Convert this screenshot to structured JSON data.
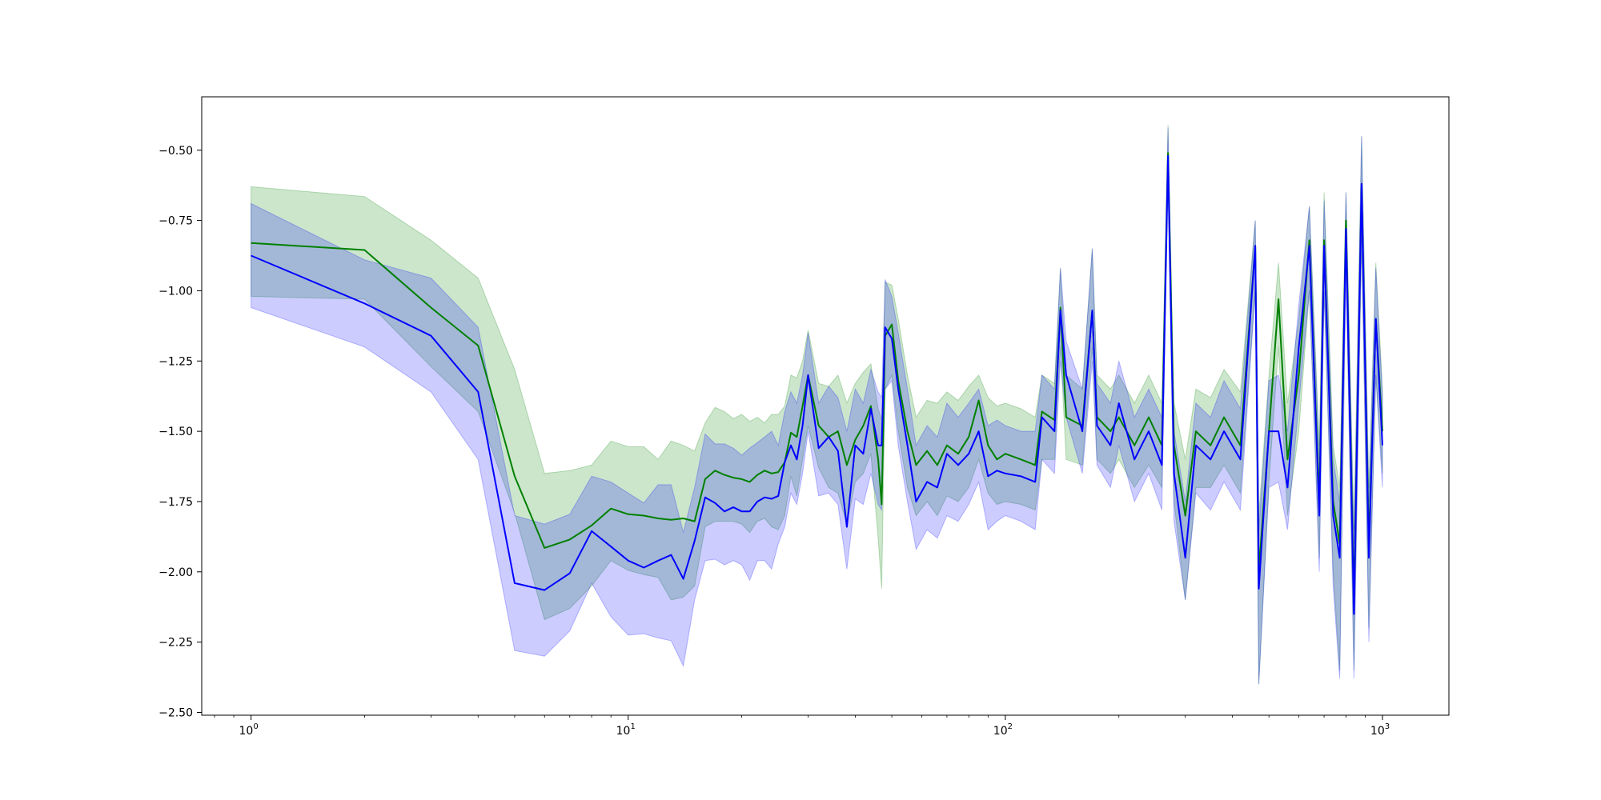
{
  "chart_data": {
    "type": "line",
    "title": "",
    "xlabel": "",
    "ylabel": "",
    "x_scale": "log",
    "xlim": [
      0.74,
      1500
    ],
    "ylim": [
      -2.51,
      -0.31
    ],
    "grid": false,
    "legend": "none",
    "x_ticks": [
      {
        "value": 1,
        "base": "10",
        "exp": "0"
      },
      {
        "value": 10,
        "base": "10",
        "exp": "1"
      },
      {
        "value": 100,
        "base": "10",
        "exp": "2"
      },
      {
        "value": 1000,
        "base": "10",
        "exp": "3"
      }
    ],
    "y_ticks": [
      {
        "value": -0.5,
        "label": "−0.50"
      },
      {
        "value": -0.75,
        "label": "−0.75"
      },
      {
        "value": -1.0,
        "label": "−1.00"
      },
      {
        "value": -1.25,
        "label": "−1.25"
      },
      {
        "value": -1.5,
        "label": "−1.50"
      },
      {
        "value": -1.75,
        "label": "−1.75"
      },
      {
        "value": -2.0,
        "label": "−2.00"
      },
      {
        "value": -2.25,
        "label": "−2.25"
      },
      {
        "value": -2.5,
        "label": "−2.50"
      }
    ],
    "series": [
      {
        "color": "#008000",
        "band_color": "#008000",
        "band_opacity": 0.2,
        "points": [
          [
            1,
            -0.83,
            -1.02,
            -0.63
          ],
          [
            2,
            -0.855,
            -1.03,
            -0.665
          ],
          [
            3,
            -1.06,
            -1.27,
            -0.82
          ],
          [
            4,
            -1.195,
            -1.43,
            -0.955
          ],
          [
            5,
            -1.66,
            -1.79,
            -1.28
          ],
          [
            6,
            -1.915,
            -2.17,
            -1.65
          ],
          [
            7,
            -1.885,
            -2.13,
            -1.64
          ],
          [
            8,
            -1.835,
            -2.05,
            -1.62
          ],
          [
            9,
            -1.775,
            -1.96,
            -1.535
          ],
          [
            10,
            -1.795,
            -1.995,
            -1.555
          ],
          [
            11,
            -1.8,
            -2.01,
            -1.555
          ],
          [
            12,
            -1.81,
            -2.02,
            -1.6
          ],
          [
            13,
            -1.815,
            -2.1,
            -1.535
          ],
          [
            14,
            -1.81,
            -2.09,
            -1.55
          ],
          [
            15,
            -1.82,
            -2.05,
            -1.57
          ],
          [
            16,
            -1.67,
            -1.84,
            -1.47
          ],
          [
            17,
            -1.64,
            -1.82,
            -1.415
          ],
          [
            18,
            -1.655,
            -1.82,
            -1.43
          ],
          [
            19,
            -1.665,
            -1.82,
            -1.455
          ],
          [
            20,
            -1.67,
            -1.83,
            -1.44
          ],
          [
            21,
            -1.68,
            -1.86,
            -1.465
          ],
          [
            22,
            -1.655,
            -1.82,
            -1.45
          ],
          [
            23,
            -1.64,
            -1.81,
            -1.47
          ],
          [
            24,
            -1.65,
            -1.84,
            -1.44
          ],
          [
            25,
            -1.645,
            -1.85,
            -1.44
          ],
          [
            26,
            -1.61,
            -1.8,
            -1.41
          ],
          [
            27,
            -1.505,
            -1.66,
            -1.3
          ],
          [
            28,
            -1.52,
            -1.73,
            -1.31
          ],
          [
            29,
            -1.41,
            -1.6,
            -1.25
          ],
          [
            30,
            -1.3,
            -1.48,
            -1.14
          ],
          [
            32,
            -1.48,
            -1.63,
            -1.33
          ],
          [
            34,
            -1.52,
            -1.7,
            -1.34
          ],
          [
            36,
            -1.5,
            -1.72,
            -1.3
          ],
          [
            38,
            -1.62,
            -1.83,
            -1.4
          ],
          [
            40,
            -1.53,
            -1.68,
            -1.33
          ],
          [
            42,
            -1.48,
            -1.65,
            -1.29
          ],
          [
            44,
            -1.41,
            -1.58,
            -1.26
          ],
          [
            46,
            -1.6,
            -1.88,
            -1.42
          ],
          [
            47,
            -1.76,
            -2.06,
            -1.46
          ],
          [
            48,
            -1.16,
            -1.35,
            -0.97
          ],
          [
            50,
            -1.12,
            -1.3,
            -0.98
          ],
          [
            52,
            -1.32,
            -1.5,
            -1.1
          ],
          [
            55,
            -1.5,
            -1.7,
            -1.3
          ],
          [
            58,
            -1.62,
            -1.8,
            -1.45
          ],
          [
            62,
            -1.57,
            -1.75,
            -1.39
          ],
          [
            66,
            -1.62,
            -1.8,
            -1.4
          ],
          [
            70,
            -1.55,
            -1.73,
            -1.36
          ],
          [
            75,
            -1.58,
            -1.75,
            -1.39
          ],
          [
            80,
            -1.52,
            -1.7,
            -1.34
          ],
          [
            85,
            -1.39,
            -1.6,
            -1.3
          ],
          [
            90,
            -1.55,
            -1.72,
            -1.38
          ],
          [
            95,
            -1.6,
            -1.76,
            -1.41
          ],
          [
            100,
            -1.58,
            -1.75,
            -1.4
          ],
          [
            110,
            -1.6,
            -1.76,
            -1.42
          ],
          [
            120,
            -1.62,
            -1.78,
            -1.45
          ],
          [
            125,
            -1.43,
            -1.6,
            -1.3
          ],
          [
            135,
            -1.46,
            -1.6,
            -1.33
          ],
          [
            140,
            -1.06,
            -1.2,
            -0.92
          ],
          [
            145,
            -1.45,
            -1.6,
            -1.3
          ],
          [
            160,
            -1.48,
            -1.62,
            -1.35
          ],
          [
            170,
            -1.07,
            -1.2,
            -0.85
          ],
          [
            175,
            -1.45,
            -1.6,
            -1.3
          ],
          [
            190,
            -1.5,
            -1.65,
            -1.35
          ],
          [
            200,
            -1.45,
            -1.6,
            -1.3
          ],
          [
            220,
            -1.55,
            -1.7,
            -1.4
          ],
          [
            240,
            -1.45,
            -1.62,
            -1.3
          ],
          [
            260,
            -1.55,
            -1.7,
            -1.4
          ],
          [
            270,
            -0.51,
            -0.6,
            -0.41
          ],
          [
            280,
            -1.55,
            -1.75,
            -1.4
          ],
          [
            300,
            -1.8,
            -2.1,
            -1.6
          ],
          [
            320,
            -1.5,
            -1.7,
            -1.35
          ],
          [
            350,
            -1.55,
            -1.7,
            -1.38
          ],
          [
            380,
            -1.45,
            -1.62,
            -1.28
          ],
          [
            420,
            -1.55,
            -1.72,
            -1.36
          ],
          [
            460,
            -0.84,
            -1.0,
            -0.75
          ],
          [
            470,
            -2.0,
            -2.4,
            -1.8
          ],
          [
            500,
            -1.5,
            -1.68,
            -1.3
          ],
          [
            530,
            -1.03,
            -1.2,
            -0.9
          ],
          [
            560,
            -1.6,
            -1.8,
            -1.4
          ],
          [
            600,
            -1.3,
            -1.5,
            -1.1
          ],
          [
            640,
            -0.82,
            -1.0,
            -0.7
          ],
          [
            680,
            -1.75,
            -1.95,
            -1.55
          ],
          [
            700,
            -0.82,
            -1.0,
            -0.65
          ],
          [
            740,
            -1.75,
            -2.0,
            -1.55
          ],
          [
            770,
            -1.9,
            -2.35,
            -1.7
          ],
          [
            800,
            -0.75,
            -0.9,
            -0.65
          ],
          [
            840,
            -2.1,
            -2.35,
            -1.85
          ],
          [
            880,
            -0.63,
            -0.8,
            -0.45
          ],
          [
            920,
            -1.9,
            -2.2,
            -1.7
          ],
          [
            960,
            -1.1,
            -1.3,
            -0.9
          ],
          [
            1000,
            -1.5,
            -1.65,
            -1.35
          ]
        ]
      },
      {
        "color": "#0000ff",
        "band_color": "#0000ff",
        "band_opacity": 0.2,
        "points": [
          [
            1,
            -0.875,
            -1.06,
            -0.69
          ],
          [
            2,
            -1.045,
            -1.2,
            -0.89
          ],
          [
            3,
            -1.16,
            -1.36,
            -0.955
          ],
          [
            4,
            -1.36,
            -1.6,
            -1.13
          ],
          [
            5,
            -2.04,
            -2.28,
            -1.8
          ],
          [
            6,
            -2.065,
            -2.3,
            -1.83
          ],
          [
            7,
            -2.005,
            -2.21,
            -1.795
          ],
          [
            8,
            -1.855,
            -2.04,
            -1.66
          ],
          [
            9,
            -1.91,
            -2.16,
            -1.68
          ],
          [
            10,
            -1.96,
            -2.225,
            -1.72
          ],
          [
            11,
            -1.985,
            -2.22,
            -1.755
          ],
          [
            12,
            -1.96,
            -2.235,
            -1.69
          ],
          [
            13,
            -1.94,
            -2.245,
            -1.69
          ],
          [
            14,
            -2.025,
            -2.335,
            -1.86
          ],
          [
            15,
            -1.89,
            -2.1,
            -1.7
          ],
          [
            16,
            -1.735,
            -1.96,
            -1.51
          ],
          [
            17,
            -1.755,
            -1.955,
            -1.545
          ],
          [
            18,
            -1.785,
            -1.975,
            -1.545
          ],
          [
            19,
            -1.77,
            -1.96,
            -1.56
          ],
          [
            20,
            -1.785,
            -1.975,
            -1.585
          ],
          [
            21,
            -1.785,
            -2.03,
            -1.56
          ],
          [
            22,
            -1.75,
            -1.96,
            -1.54
          ],
          [
            23,
            -1.735,
            -1.96,
            -1.52
          ],
          [
            24,
            -1.74,
            -1.99,
            -1.5
          ],
          [
            25,
            -1.73,
            -1.9,
            -1.55
          ],
          [
            26,
            -1.61,
            -1.84,
            -1.43
          ],
          [
            27,
            -1.55,
            -1.72,
            -1.36
          ],
          [
            28,
            -1.6,
            -1.76,
            -1.4
          ],
          [
            29,
            -1.48,
            -1.65,
            -1.3
          ],
          [
            30,
            -1.3,
            -1.5,
            -1.15
          ],
          [
            32,
            -1.56,
            -1.73,
            -1.4
          ],
          [
            34,
            -1.52,
            -1.72,
            -1.34
          ],
          [
            36,
            -1.57,
            -1.76,
            -1.38
          ],
          [
            38,
            -1.84,
            -1.99,
            -1.5
          ],
          [
            40,
            -1.55,
            -1.74,
            -1.35
          ],
          [
            42,
            -1.58,
            -1.76,
            -1.4
          ],
          [
            44,
            -1.42,
            -1.65,
            -1.28
          ],
          [
            46,
            -1.55,
            -1.76,
            -1.36
          ],
          [
            47,
            -1.55,
            -1.78,
            -1.38
          ],
          [
            48,
            -1.13,
            -1.35,
            -0.96
          ],
          [
            50,
            -1.17,
            -1.32,
            -1.02
          ],
          [
            52,
            -1.35,
            -1.55,
            -1.15
          ],
          [
            55,
            -1.55,
            -1.75,
            -1.35
          ],
          [
            58,
            -1.75,
            -1.92,
            -1.55
          ],
          [
            62,
            -1.68,
            -1.85,
            -1.48
          ],
          [
            66,
            -1.7,
            -1.88,
            -1.52
          ],
          [
            70,
            -1.58,
            -1.8,
            -1.4
          ],
          [
            75,
            -1.62,
            -1.82,
            -1.45
          ],
          [
            80,
            -1.58,
            -1.76,
            -1.4
          ],
          [
            85,
            -1.5,
            -1.68,
            -1.35
          ],
          [
            90,
            -1.66,
            -1.85,
            -1.48
          ],
          [
            95,
            -1.64,
            -1.82,
            -1.46
          ],
          [
            100,
            -1.65,
            -1.8,
            -1.48
          ],
          [
            110,
            -1.66,
            -1.82,
            -1.5
          ],
          [
            120,
            -1.68,
            -1.85,
            -1.5
          ],
          [
            125,
            -1.45,
            -1.6,
            -1.3
          ],
          [
            135,
            -1.5,
            -1.65,
            -1.35
          ],
          [
            140,
            -1.07,
            -1.25,
            -0.92
          ],
          [
            145,
            -1.3,
            -1.45,
            -1.18
          ],
          [
            160,
            -1.5,
            -1.65,
            -1.35
          ],
          [
            170,
            -1.07,
            -1.25,
            -0.85
          ],
          [
            175,
            -1.48,
            -1.62,
            -1.33
          ],
          [
            190,
            -1.55,
            -1.7,
            -1.4
          ],
          [
            200,
            -1.4,
            -1.55,
            -1.25
          ],
          [
            220,
            -1.6,
            -1.75,
            -1.45
          ],
          [
            240,
            -1.5,
            -1.65,
            -1.35
          ],
          [
            260,
            -1.62,
            -1.78,
            -1.45
          ],
          [
            270,
            -0.52,
            -0.62,
            -0.42
          ],
          [
            280,
            -1.65,
            -1.82,
            -1.5
          ],
          [
            300,
            -1.95,
            -2.1,
            -1.75
          ],
          [
            320,
            -1.55,
            -1.72,
            -1.4
          ],
          [
            350,
            -1.6,
            -1.78,
            -1.45
          ],
          [
            380,
            -1.5,
            -1.68,
            -1.32
          ],
          [
            420,
            -1.6,
            -1.78,
            -1.42
          ],
          [
            460,
            -0.84,
            -1.0,
            -0.75
          ],
          [
            470,
            -2.06,
            -2.4,
            -1.85
          ],
          [
            500,
            -1.5,
            -1.7,
            -1.32
          ],
          [
            530,
            -1.5,
            -1.68,
            -1.3
          ],
          [
            560,
            -1.7,
            -1.85,
            -1.5
          ],
          [
            600,
            -1.2,
            -1.4,
            -1.05
          ],
          [
            640,
            -0.84,
            -1.0,
            -0.7
          ],
          [
            680,
            -1.8,
            -2.0,
            -1.6
          ],
          [
            700,
            -0.84,
            -1.0,
            -0.68
          ],
          [
            740,
            -1.8,
            -2.05,
            -1.6
          ],
          [
            770,
            -1.95,
            -2.38,
            -1.75
          ],
          [
            800,
            -0.78,
            -0.92,
            -0.65
          ],
          [
            840,
            -2.15,
            -2.38,
            -1.9
          ],
          [
            880,
            -0.62,
            -0.82,
            -0.45
          ],
          [
            920,
            -1.95,
            -2.25,
            -1.75
          ],
          [
            960,
            -1.1,
            -1.3,
            -0.92
          ],
          [
            1000,
            -1.55,
            -1.7,
            -1.38
          ]
        ]
      }
    ]
  }
}
